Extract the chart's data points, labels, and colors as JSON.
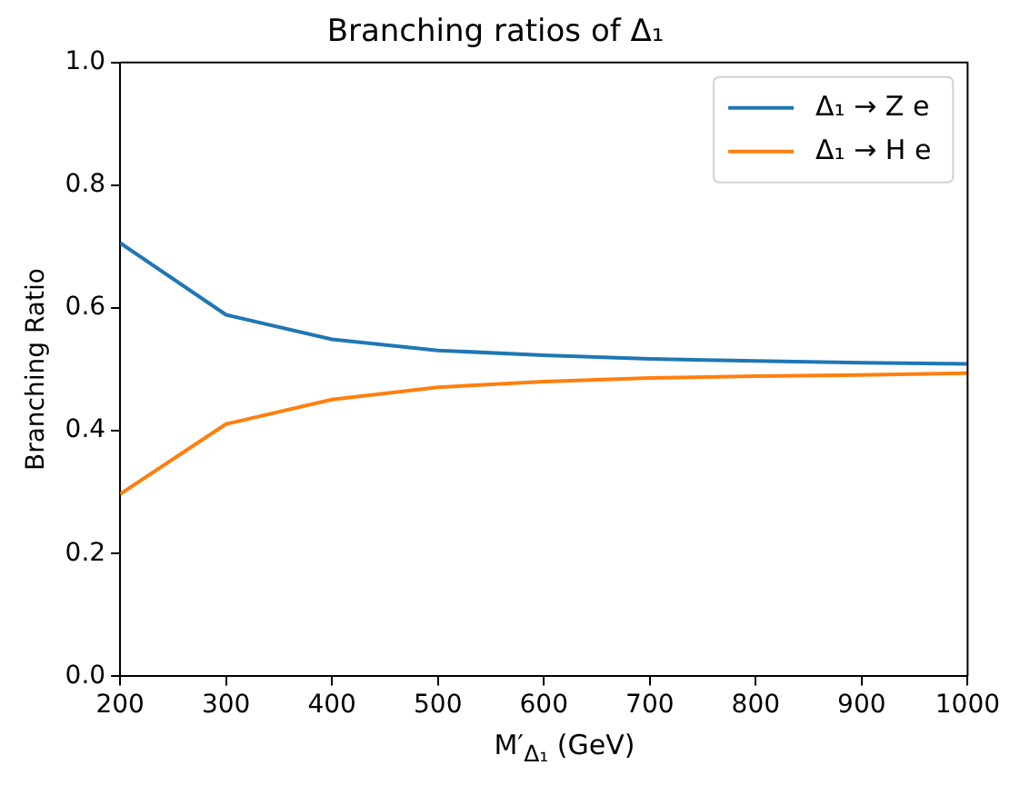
{
  "chart_data": {
    "type": "line",
    "title": "Branching ratios of Δ₁",
    "xlabel": "M′$_{Δ₁}$ (GeV)",
    "ylabel": "Branching Ratio",
    "x": [
      200,
      300,
      400,
      500,
      600,
      700,
      800,
      900,
      1000
    ],
    "series": [
      {
        "name": "Δ₁ → Z e",
        "color": "#1f77b4",
        "values": [
          0.706,
          0.589,
          0.549,
          0.531,
          0.523,
          0.517,
          0.514,
          0.511,
          0.509
        ]
      },
      {
        "name": "Δ₁ → H e",
        "color": "#ff7f0e",
        "values": [
          0.297,
          0.411,
          0.451,
          0.471,
          0.48,
          0.486,
          0.489,
          0.491,
          0.494
        ]
      }
    ],
    "xlim": [
      200,
      1000
    ],
    "xticks": [
      200,
      300,
      400,
      500,
      600,
      700,
      800,
      900,
      1000
    ],
    "ylim": [
      0,
      1
    ],
    "yticks": [
      {
        "value": 0,
        "label": "0.0"
      },
      0.2,
      0.4,
      0.6,
      0.8,
      {
        "value": 1,
        "label": "1.0"
      }
    ],
    "grid": false,
    "legend": "top right",
    "marker": "none",
    "line_style": "solid"
  }
}
